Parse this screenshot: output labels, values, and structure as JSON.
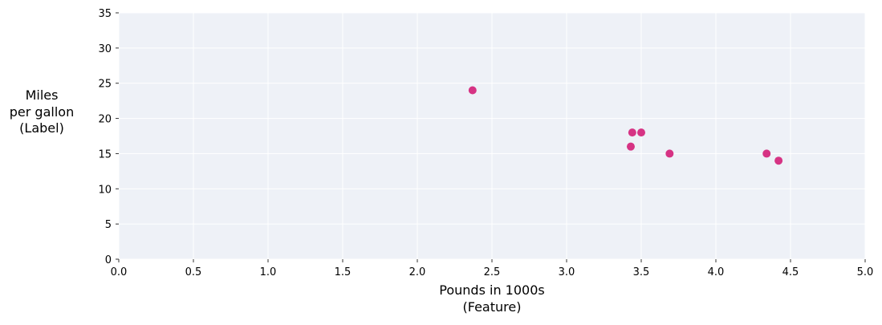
{
  "chart_data": {
    "type": "scatter",
    "title": "",
    "xlabel": [
      "Pounds in 1000s",
      "(Feature)"
    ],
    "ylabel": [
      "Miles",
      "per gallon",
      "(Label)"
    ],
    "xlim": [
      0,
      5
    ],
    "ylim": [
      0,
      35
    ],
    "xticks": [
      "0.0",
      "0.5",
      "1.0",
      "1.5",
      "2.0",
      "2.5",
      "3.0",
      "3.5",
      "4.0",
      "4.5",
      "5.0"
    ],
    "yticks": [
      "0",
      "5",
      "10",
      "15",
      "20",
      "25",
      "30",
      "35"
    ],
    "grid": true,
    "background_color": "#eef1f7",
    "point_color": "#d63384",
    "points": [
      {
        "x": 2.37,
        "y": 24
      },
      {
        "x": 3.44,
        "y": 18
      },
      {
        "x": 3.5,
        "y": 18
      },
      {
        "x": 3.43,
        "y": 16
      },
      {
        "x": 3.69,
        "y": 15
      },
      {
        "x": 4.34,
        "y": 15
      },
      {
        "x": 4.42,
        "y": 14
      }
    ]
  }
}
